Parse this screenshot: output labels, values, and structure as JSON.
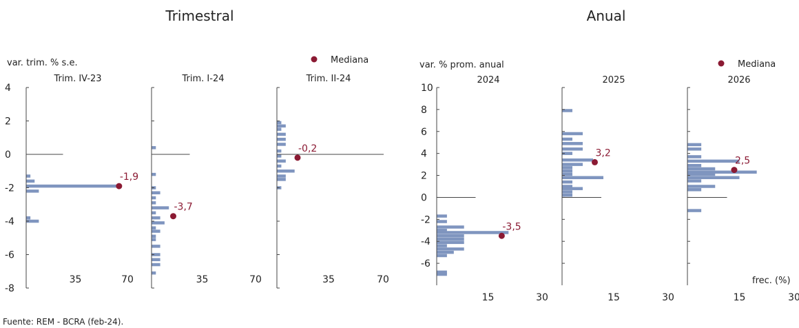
{
  "titles": {
    "quarterly": "Trimestral",
    "annual": "Anual"
  },
  "source": "Fuente: REM - BCRA (feb-24).",
  "colors": {
    "bar": "#7f95bf",
    "median": "#8b1a33",
    "axis": "#444444"
  },
  "chart_data": [
    {
      "type": "bar",
      "orientation": "horizontal",
      "group": "Trimestral",
      "ylabel": "var. trim. % s.e.",
      "xlabel": "",
      "legend": {
        "label": "Mediana",
        "placement": "top-right"
      },
      "ylim": [
        -8,
        4
      ],
      "yticks": [
        4,
        2,
        0,
        -2,
        -4,
        -6,
        -8
      ],
      "xlim": [
        0,
        70
      ],
      "xticks": [
        35,
        70
      ],
      "panels": [
        {
          "title": "Trim. IV-23",
          "median": -1.9,
          "median_label": "-1,9",
          "bars": [
            {
              "y": -1.3,
              "v": 3
            },
            {
              "y": -1.6,
              "v": 6
            },
            {
              "y": -1.9,
              "v": 66
            },
            {
              "y": -2.2,
              "v": 9
            },
            {
              "y": -3.8,
              "v": 3
            },
            {
              "y": -4.0,
              "v": 9
            }
          ]
        },
        {
          "title": "Trim. I-24",
          "median": -3.7,
          "median_label": "-3,7",
          "bars": [
            {
              "y": 0.4,
              "v": 3
            },
            {
              "y": -1.2,
              "v": 3
            },
            {
              "y": -2.0,
              "v": 3
            },
            {
              "y": -2.3,
              "v": 6
            },
            {
              "y": -2.6,
              "v": 3
            },
            {
              "y": -2.9,
              "v": 3
            },
            {
              "y": -3.2,
              "v": 12
            },
            {
              "y": -3.5,
              "v": 3
            },
            {
              "y": -3.8,
              "v": 6
            },
            {
              "y": -4.1,
              "v": 9
            },
            {
              "y": -4.4,
              "v": 3
            },
            {
              "y": -4.6,
              "v": 6
            },
            {
              "y": -4.9,
              "v": 3
            },
            {
              "y": -5.1,
              "v": 3
            },
            {
              "y": -5.5,
              "v": 6
            },
            {
              "y": -6.0,
              "v": 6
            },
            {
              "y": -6.3,
              "v": 6
            },
            {
              "y": -6.6,
              "v": 6
            },
            {
              "y": -7.1,
              "v": 3
            }
          ]
        },
        {
          "title": "Trim. II-24",
          "median": -0.2,
          "median_label": "-0,2",
          "bars": [
            {
              "y": 1.9,
              "v": 3
            },
            {
              "y": 1.7,
              "v": 6
            },
            {
              "y": 1.5,
              "v": 3
            },
            {
              "y": 1.2,
              "v": 6
            },
            {
              "y": 0.9,
              "v": 6
            },
            {
              "y": 0.6,
              "v": 6
            },
            {
              "y": 0.2,
              "v": 3
            },
            {
              "y": -0.1,
              "v": 3
            },
            {
              "y": -0.4,
              "v": 6
            },
            {
              "y": -0.7,
              "v": 3
            },
            {
              "y": -1.0,
              "v": 12
            },
            {
              "y": -1.3,
              "v": 6
            },
            {
              "y": -1.5,
              "v": 6
            },
            {
              "y": -2.0,
              "v": 3
            }
          ]
        }
      ]
    },
    {
      "type": "bar",
      "orientation": "horizontal",
      "group": "Anual",
      "ylabel": "var. % prom. anual",
      "xlabel": "frec. (%)",
      "legend": {
        "label": "Mediana",
        "placement": "top-right"
      },
      "ylim": [
        -8,
        10
      ],
      "yticks": [
        10,
        8,
        6,
        4,
        2,
        0,
        -2,
        -4,
        -6
      ],
      "xlim": [
        0,
        30
      ],
      "xticks": [
        15,
        30
      ],
      "panels": [
        {
          "title": "2024",
          "median": -3.5,
          "median_label": "-3,5",
          "bars": [
            {
              "y": -1.7,
              "v": 3
            },
            {
              "y": -2.2,
              "v": 3
            },
            {
              "y": -2.7,
              "v": 8
            },
            {
              "y": -3.0,
              "v": 3
            },
            {
              "y": -3.2,
              "v": 21
            },
            {
              "y": -3.5,
              "v": 8
            },
            {
              "y": -3.8,
              "v": 8
            },
            {
              "y": -4.1,
              "v": 8
            },
            {
              "y": -4.4,
              "v": 3
            },
            {
              "y": -4.7,
              "v": 8
            },
            {
              "y": -5.0,
              "v": 5
            },
            {
              "y": -5.3,
              "v": 3
            },
            {
              "y": -6.8,
              "v": 3
            },
            {
              "y": -7.0,
              "v": 3
            }
          ]
        },
        {
          "title": "2025",
          "median": 3.2,
          "median_label": "3,2",
          "bars": [
            {
              "y": 7.9,
              "v": 3
            },
            {
              "y": 5.8,
              "v": 6
            },
            {
              "y": 5.3,
              "v": 3
            },
            {
              "y": 4.9,
              "v": 6
            },
            {
              "y": 4.4,
              "v": 6
            },
            {
              "y": 4.0,
              "v": 3
            },
            {
              "y": 3.4,
              "v": 9
            },
            {
              "y": 3.0,
              "v": 6
            },
            {
              "y": 2.7,
              "v": 3
            },
            {
              "y": 2.4,
              "v": 3
            },
            {
              "y": 2.1,
              "v": 3
            },
            {
              "y": 1.8,
              "v": 12
            },
            {
              "y": 1.4,
              "v": 3
            },
            {
              "y": 1.0,
              "v": 3
            },
            {
              "y": 0.8,
              "v": 6
            },
            {
              "y": 0.5,
              "v": 3
            },
            {
              "y": 0.2,
              "v": 3
            }
          ]
        },
        {
          "title": "2026",
          "median": 2.5,
          "median_label": "2,5",
          "bars": [
            {
              "y": 4.8,
              "v": 4
            },
            {
              "y": 4.4,
              "v": 4
            },
            {
              "y": 3.7,
              "v": 4
            },
            {
              "y": 3.3,
              "v": 15
            },
            {
              "y": 2.9,
              "v": 4
            },
            {
              "y": 2.6,
              "v": 8
            },
            {
              "y": 2.3,
              "v": 20
            },
            {
              "y": 2.1,
              "v": 8
            },
            {
              "y": 1.8,
              "v": 15
            },
            {
              "y": 1.5,
              "v": 4
            },
            {
              "y": 1.0,
              "v": 8
            },
            {
              "y": 0.7,
              "v": 4
            },
            {
              "y": -1.2,
              "v": 4
            }
          ]
        }
      ]
    }
  ]
}
